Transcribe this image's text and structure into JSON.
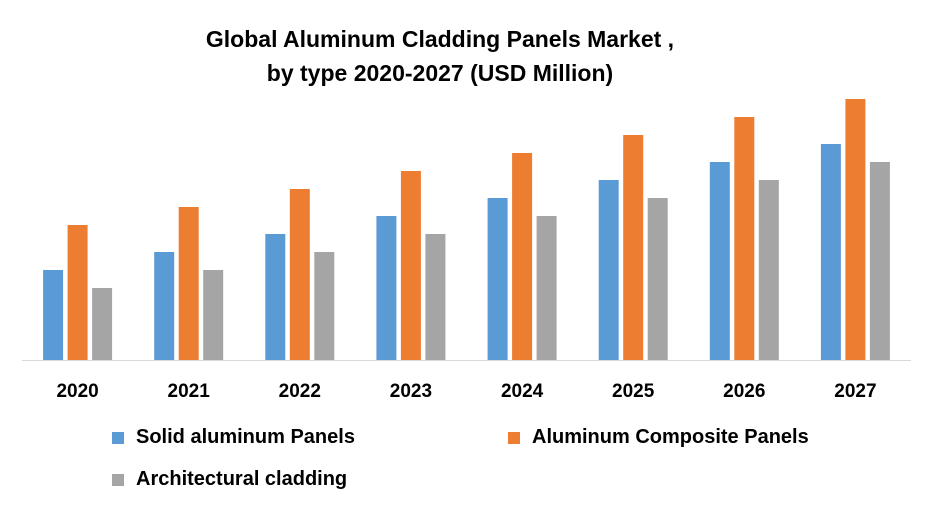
{
  "chart_data": {
    "type": "bar",
    "title_line1": "Global Aluminum Cladding Panels Market ,",
    "title_line2": "by type 2020-2027 (USD Million)",
    "categories": [
      "2020",
      "2021",
      "2022",
      "2023",
      "2024",
      "2025",
      "2026",
      "2027"
    ],
    "series": [
      {
        "name": "Solid aluminum Panels",
        "color": "#5B9BD5",
        "values": [
          3.0,
          3.6,
          4.2,
          4.8,
          5.4,
          6.0,
          6.6,
          7.2
        ]
      },
      {
        "name": "Aluminum Composite Panels",
        "color": "#ED7D31",
        "values": [
          4.5,
          5.1,
          5.7,
          6.3,
          6.9,
          7.5,
          8.1,
          8.7
        ]
      },
      {
        "name": "Architectural cladding",
        "color": "#A5A5A5",
        "values": [
          2.4,
          3.0,
          3.6,
          4.2,
          4.8,
          5.4,
          6.0,
          6.6
        ]
      }
    ],
    "xlabel": "",
    "ylabel": "",
    "ylim": [
      0,
      10
    ],
    "grid": false,
    "legend": "bottom"
  }
}
